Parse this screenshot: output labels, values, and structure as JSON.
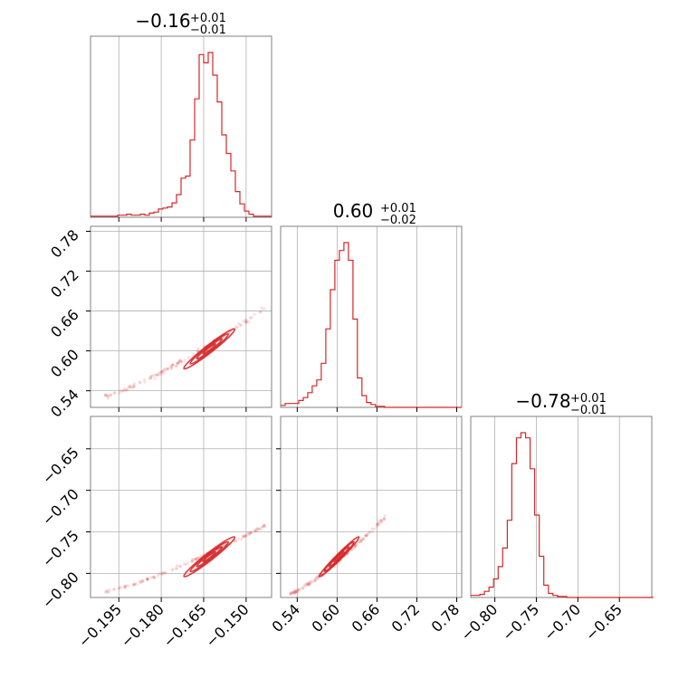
{
  "chart_data": {
    "type": "corner",
    "color": "#d62728",
    "parameters": [
      {
        "title": "−0.16",
        "plus": "+0.01",
        "minus": "−0.01",
        "range": [
          -0.205,
          -0.141
        ],
        "ticks": [
          -0.195,
          -0.18,
          -0.165,
          -0.15
        ],
        "tick_labels": [
          "−0.195",
          "−0.180",
          "−0.165",
          "−0.150"
        ],
        "hist_start": -0.205,
        "hist_step": 0.0016,
        "hist_counts": [
          1,
          1,
          1,
          1,
          1,
          1,
          2,
          2,
          3,
          2,
          2,
          3,
          2,
          4,
          5,
          8,
          9,
          10,
          14,
          22,
          38,
          40,
          75,
          115,
          158,
          150,
          160,
          138,
          112,
          80,
          62,
          45,
          25,
          13,
          6,
          3,
          1,
          1,
          1,
          1
        ]
      },
      {
        "title": "0.60",
        "plus": "+0.01",
        "minus": "−0.02",
        "range": [
          0.515,
          0.7875
        ],
        "ticks": [
          0.54,
          0.6,
          0.66,
          0.72,
          0.78
        ],
        "tick_labels": [
          "0.54",
          "0.60",
          "0.66",
          "0.72",
          "0.78"
        ],
        "hist_start": 0.515,
        "hist_step": 0.0068,
        "hist_counts": [
          2,
          4,
          4,
          4,
          7,
          10,
          15,
          22,
          28,
          45,
          80,
          120,
          150,
          160,
          168,
          150,
          90,
          30,
          12,
          5,
          3,
          1,
          1,
          0,
          0,
          0,
          0,
          0,
          0,
          0,
          0,
          0,
          0,
          0,
          0,
          0,
          0,
          0,
          0,
          0
        ]
      },
      {
        "title": "−0.78",
        "plus": "+0.01",
        "minus": "−0.01",
        "range": [
          -0.829,
          -0.611
        ],
        "ticks": [
          -0.8,
          -0.75,
          -0.7,
          -0.65
        ],
        "tick_labels": [
          "−0.80",
          "−0.75",
          "−0.70",
          "−0.65"
        ],
        "hist_start": -0.829,
        "hist_step": 0.0055,
        "hist_counts": [
          2,
          2,
          3,
          6,
          10,
          18,
          30,
          48,
          75,
          130,
          155,
          160,
          155,
          125,
          80,
          40,
          12,
          4,
          2,
          1,
          1,
          0,
          0,
          0,
          0,
          0,
          0,
          0,
          0,
          0,
          0,
          0,
          0,
          0,
          0,
          0,
          0,
          0,
          0,
          0
        ]
      }
    ],
    "pairs": [
      {
        "x": 0,
        "y": 1,
        "center": [
          -0.163,
          0.603
        ],
        "sx": 0.0045,
        "sy": 0.015,
        "rho": 0.97,
        "tail": {
          "x": [
            -0.2,
            -0.143
          ],
          "y": [
            0.532,
            0.665
          ]
        }
      },
      {
        "x": 0,
        "y": 2,
        "center": [
          -0.163,
          -0.78
        ],
        "sx": 0.0045,
        "sy": 0.012,
        "rho": 0.97,
        "tail": {
          "x": [
            -0.2,
            -0.143
          ],
          "y": [
            -0.822,
            -0.742
          ]
        }
      },
      {
        "x": 1,
        "y": 2,
        "center": [
          0.603,
          -0.78
        ],
        "sx": 0.015,
        "sy": 0.012,
        "rho": 0.98,
        "tail": {
          "x": [
            0.528,
            0.672
          ],
          "y": [
            -0.825,
            -0.733
          ]
        }
      }
    ]
  }
}
